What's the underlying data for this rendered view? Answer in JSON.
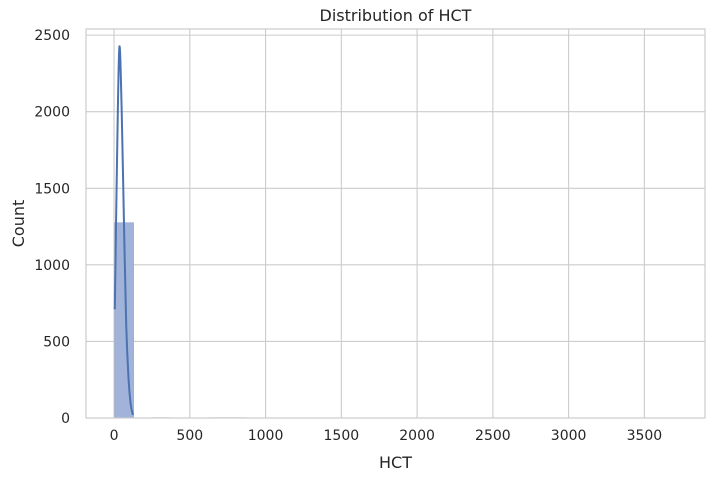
{
  "chart_data": {
    "type": "bar",
    "title": "Distribution of HCT",
    "xlabel": "HCT",
    "ylabel": "Count",
    "xlim": [
      -185,
      3900
    ],
    "ylim": [
      0,
      2540
    ],
    "xticks": [
      0,
      500,
      1000,
      1500,
      2000,
      2500,
      3000,
      3500
    ],
    "yticks": [
      0,
      500,
      1000,
      1500,
      2000,
      2500
    ],
    "grid": true,
    "bins": [
      {
        "x0": 5,
        "x1": 129,
        "count": 1275
      },
      {
        "x0": 129,
        "x1": 253,
        "count": 0
      },
      {
        "x0": 253,
        "x1": 377,
        "count": 2
      },
      {
        "x0": 377,
        "x1": 501,
        "count": 1
      },
      {
        "x0": 501,
        "x1": 625,
        "count": 1
      },
      {
        "x0": 625,
        "x1": 749,
        "count": 2
      },
      {
        "x0": 749,
        "x1": 873,
        "count": 2
      },
      {
        "x0": 873,
        "x1": 997,
        "count": 1
      },
      {
        "x0": 997,
        "x1": 1121,
        "count": 1
      },
      {
        "x0": 1121,
        "x1": 1245,
        "count": 1
      },
      {
        "x0": 1245,
        "x1": 1369,
        "count": 1
      },
      {
        "x0": 1369,
        "x1": 1493,
        "count": 1
      },
      {
        "x0": 1493,
        "x1": 1617,
        "count": 1
      },
      {
        "x0": 1617,
        "x1": 1741,
        "count": 1
      },
      {
        "x0": 1741,
        "x1": 1865,
        "count": 1
      },
      {
        "x0": 1865,
        "x1": 1989,
        "count": 1
      },
      {
        "x0": 1989,
        "x1": 2113,
        "count": 1
      },
      {
        "x0": 2113,
        "x1": 2237,
        "count": 1
      },
      {
        "x0": 2237,
        "x1": 2361,
        "count": 1
      },
      {
        "x0": 2361,
        "x1": 2485,
        "count": 1
      },
      {
        "x0": 2485,
        "x1": 2609,
        "count": 1
      },
      {
        "x0": 2609,
        "x1": 2733,
        "count": 1
      },
      {
        "x0": 2733,
        "x1": 2857,
        "count": 1
      },
      {
        "x0": 2857,
        "x1": 2981,
        "count": 1
      },
      {
        "x0": 2981,
        "x1": 3105,
        "count": 1
      },
      {
        "x0": 3105,
        "x1": 3229,
        "count": 1
      },
      {
        "x0": 3229,
        "x1": 3353,
        "count": 1
      },
      {
        "x0": 3353,
        "x1": 3477,
        "count": 1
      },
      {
        "x0": 3477,
        "x1": 3601,
        "count": 1
      },
      {
        "x0": 3601,
        "x1": 3725,
        "count": 1
      }
    ],
    "kde": {
      "x": [
        5,
        20,
        35,
        50,
        65,
        80,
        95,
        110,
        125
      ],
      "y": [
        710,
        1700,
        2420,
        2030,
        1300,
        620,
        270,
        90,
        20
      ]
    },
    "colors": {
      "bar_fill": "#a1b3d9",
      "bar_edge": "#8ea3cd",
      "kde_line": "#4c72b0",
      "grid": "#cccccc",
      "frame": "#cccccc"
    }
  }
}
